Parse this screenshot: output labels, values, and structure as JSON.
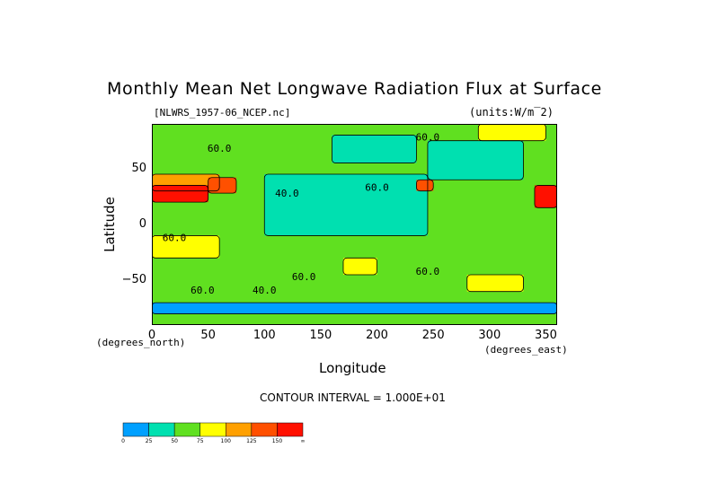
{
  "chart_data": {
    "type": "heatmap",
    "title": "Monthly Mean Net Longwave Radiation Flux at Surface",
    "file_label": "[NLWRS_1957-06_NCEP.nc]",
    "units_label": "(units:W/m^2)",
    "xlabel": "Longitude",
    "ylabel": "Latitude",
    "x_units": "(degrees_east)",
    "y_units": "(degrees_north)",
    "xlim": [
      0,
      360
    ],
    "ylim": [
      -90,
      90
    ],
    "x_ticks": [
      0,
      50,
      100,
      150,
      200,
      250,
      300,
      350
    ],
    "y_ticks": [
      50,
      0,
      -50
    ],
    "contour_interval_text": "CONTOUR INTERVAL = 1.000E+01",
    "contour_labels": [
      {
        "text": "60.0",
        "lon": 60,
        "lat": 65
      },
      {
        "text": "60.0",
        "lon": 245,
        "lat": 75
      },
      {
        "text": "40.0",
        "lon": 120,
        "lat": 25
      },
      {
        "text": "60.0",
        "lon": 200,
        "lat": 30
      },
      {
        "text": "60.0",
        "lon": 20,
        "lat": -15
      },
      {
        "text": "60.0",
        "lon": 135,
        "lat": -50
      },
      {
        "text": "60.0",
        "lon": 245,
        "lat": -45
      },
      {
        "text": "60.0",
        "lon": 45,
        "lat": -62
      },
      {
        "text": "40.0",
        "lon": 100,
        "lat": -62
      }
    ],
    "colorbar": {
      "levels": [
        "0",
        "25",
        "50",
        "75",
        "100",
        "125",
        "150",
        "∞"
      ],
      "colors": [
        "#00a0ff",
        "#00e0b0",
        "#60e020",
        "#ffff00",
        "#ffa000",
        "#ff5000",
        "#ff1000"
      ]
    },
    "regions": [
      {
        "lon": [
          0,
          360
        ],
        "lat": [
          -90,
          90
        ],
        "value": 60
      },
      {
        "lon": [
          100,
          245
        ],
        "lat": [
          -10,
          45
        ],
        "value": 40
      },
      {
        "lon": [
          245,
          330
        ],
        "lat": [
          40,
          75
        ],
        "value": 40
      },
      {
        "lon": [
          160,
          235
        ],
        "lat": [
          55,
          80
        ],
        "value": 40
      },
      {
        "lon": [
          0,
          60
        ],
        "lat": [
          -30,
          -10
        ],
        "value": 80
      },
      {
        "lon": [
          170,
          200
        ],
        "lat": [
          -45,
          -30
        ],
        "value": 80
      },
      {
        "lon": [
          280,
          330
        ],
        "lat": [
          -60,
          -45
        ],
        "value": 80
      },
      {
        "lon": [
          290,
          350
        ],
        "lat": [
          75,
          90
        ],
        "value": 80
      },
      {
        "lon": [
          0,
          60
        ],
        "lat": [
          30,
          45
        ],
        "value": 110
      },
      {
        "lon": [
          0,
          50
        ],
        "lat": [
          20,
          35
        ],
        "value": 150
      },
      {
        "lon": [
          50,
          75
        ],
        "lat": [
          28,
          42
        ],
        "value": 145
      },
      {
        "lon": [
          340,
          360
        ],
        "lat": [
          15,
          35
        ],
        "value": 150
      },
      {
        "lon": [
          235,
          250
        ],
        "lat": [
          30,
          40
        ],
        "value": 145
      },
      {
        "lon": [
          0,
          360
        ],
        "lat": [
          -80,
          -70
        ],
        "value": 20
      }
    ]
  }
}
